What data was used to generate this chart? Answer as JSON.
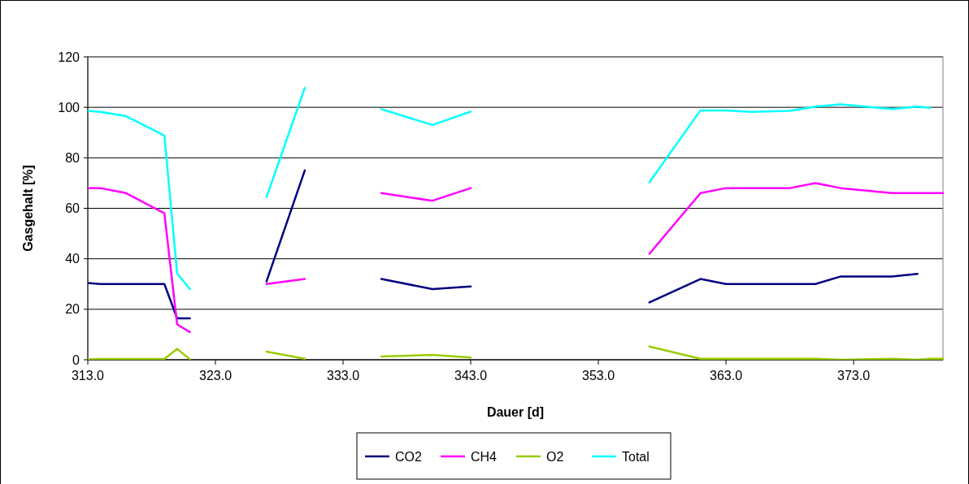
{
  "chart_data": {
    "type": "line",
    "xlabel": "Dauer [d]",
    "ylabel": "Gasgehalt [%]",
    "xlim": [
      313,
      380
    ],
    "xticks": [
      {
        "value": 313,
        "label": "313.0"
      },
      {
        "value": 323,
        "label": "323.0"
      },
      {
        "value": 333,
        "label": "333.0"
      },
      {
        "value": 343,
        "label": "343.0"
      },
      {
        "value": 353,
        "label": "353.0"
      },
      {
        "value": 363,
        "label": "363.0"
      },
      {
        "value": 373,
        "label": "373.0"
      }
    ],
    "ylim": [
      0,
      120
    ],
    "yticks": [
      0,
      20,
      40,
      60,
      80,
      100,
      120
    ],
    "grid": "y",
    "legend": "bottom",
    "marker": "none",
    "line_style": "solid",
    "series": [
      {
        "name": "CO2",
        "color": "#000080",
        "x": [
          313,
          314,
          316,
          319,
          320,
          321,
          324,
          327,
          330,
          333,
          336,
          340,
          343,
          350,
          357,
          361,
          363,
          368,
          370,
          372,
          376,
          378
        ],
        "values": [
          30.4,
          30,
          30,
          30,
          16.4,
          16.4,
          null,
          31,
          75,
          null,
          32,
          28,
          29,
          null,
          22.7,
          32,
          30,
          30,
          30,
          33,
          33,
          34
        ]
      },
      {
        "name": "CH4",
        "color": "#ff00ff",
        "x": [
          313,
          314,
          316,
          319,
          320,
          321,
          324,
          327,
          330,
          333,
          336,
          340,
          343,
          350,
          357,
          361,
          363,
          368,
          370,
          372,
          376,
          380
        ],
        "values": [
          68,
          68,
          66,
          58,
          14,
          11,
          null,
          30,
          32,
          null,
          66,
          63,
          68,
          null,
          42,
          66,
          68,
          68,
          70,
          68,
          66,
          66
        ]
      },
      {
        "name": "O2",
        "color": "#99cc00",
        "x": [
          313,
          314,
          316,
          319,
          320,
          321,
          324,
          327,
          330,
          333,
          336,
          340,
          343,
          350,
          357,
          361,
          363,
          368,
          370,
          372,
          376,
          378,
          379,
          380
        ],
        "values": [
          0.2,
          0.3,
          0.3,
          0.3,
          4.3,
          0.2,
          null,
          3.2,
          0.4,
          null,
          1.3,
          1.9,
          0.9,
          null,
          5.2,
          0.4,
          0.4,
          0.4,
          0.4,
          0,
          0.4,
          0,
          0.4,
          0.4
        ]
      },
      {
        "name": "Total",
        "color": "#00ffff",
        "x": [
          313,
          314,
          316,
          319,
          320,
          321,
          324,
          327,
          330,
          333,
          336,
          340,
          343,
          350,
          357,
          361,
          363,
          365,
          368,
          370,
          372,
          376,
          378,
          379
        ],
        "values": [
          98.6,
          98.2,
          96.5,
          88.8,
          34.2,
          28,
          null,
          64.4,
          107.7,
          null,
          99.3,
          93,
          98.3,
          null,
          70.3,
          98.8,
          98.8,
          98.2,
          98.6,
          100.3,
          101.2,
          99.3,
          100.3,
          99.8
        ]
      }
    ]
  }
}
